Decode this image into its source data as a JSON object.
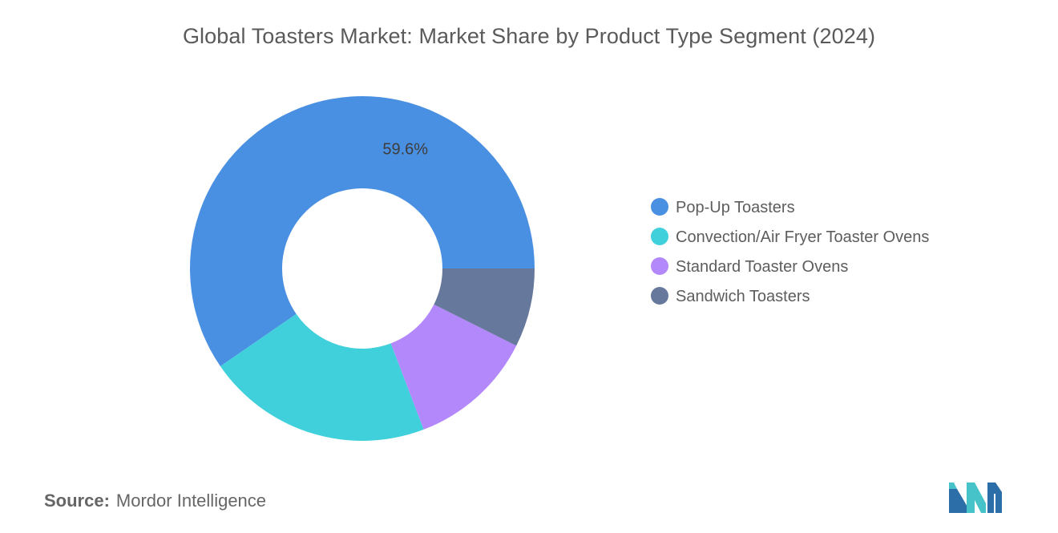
{
  "title": "Global Toasters Market: Market Share by Product Type Segment (2024)",
  "source": {
    "label": "Source:",
    "value": "Mordor Intelligence"
  },
  "logo_icon": "mordor-intelligence-logo-icon",
  "chart_data": {
    "type": "pie",
    "style": "donut",
    "legend_position": "right",
    "categories": [
      "Pop-Up Toasters",
      "Convection/Air Fryer Toaster Ovens",
      "Standard Toaster Ovens",
      "Sandwich Toasters"
    ],
    "values": [
      59.6,
      21.2,
      11.8,
      7.4
    ],
    "colors": [
      "#4a90e2",
      "#40d0dc",
      "#b388fb",
      "#66789b"
    ],
    "data_labels": [
      "59.6%",
      "",
      "",
      ""
    ]
  }
}
